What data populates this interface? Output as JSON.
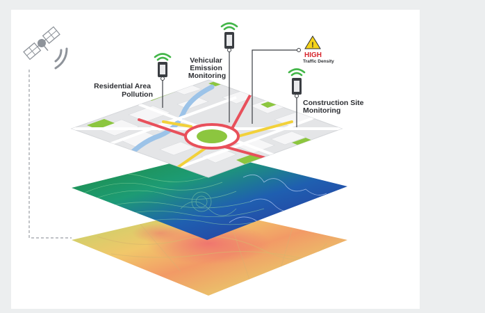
{
  "labels": {
    "residential": [
      "Residential Area",
      "Pollution"
    ],
    "vehicular": [
      "Vehicular",
      "Emission",
      "Monitoring"
    ],
    "construction": [
      "Construction Site",
      "Monitoring"
    ]
  },
  "alert": {
    "level": "HIGH",
    "text": "Traffic Density"
  },
  "colors": {
    "background": "#eceeef",
    "card": "#ffffff",
    "signal": "#43b649",
    "alert_red": "#d7262d",
    "warning_yellow": "#f5d31a",
    "road_red": "#e8505b",
    "road_yellow": "#f2d13a",
    "park_green": "#8cc63f",
    "water_blue": "#9cc3e8"
  },
  "icons": {
    "satellite": "satellite-icon",
    "sensor": "sensor-icon",
    "signal": "wifi-signal-icon",
    "warning": "warning-triangle-icon"
  }
}
